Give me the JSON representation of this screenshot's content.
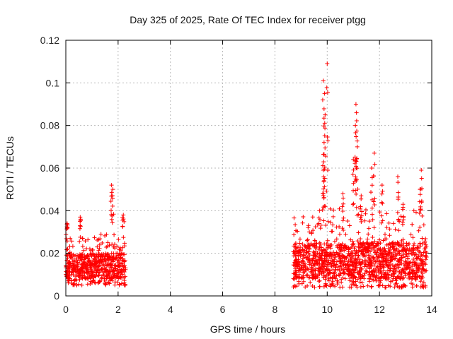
{
  "chart_data": {
    "type": "scatter",
    "title": "Day 325 of 2025, Rate Of TEC Index for receiver ptgg",
    "xlabel": "GPS time / hours",
    "ylabel": "ROTI / TECUs",
    "xlim": [
      0,
      14
    ],
    "ylim": [
      0,
      0.12
    ],
    "x_ticks": [
      0,
      2,
      4,
      6,
      8,
      10,
      12,
      14
    ],
    "x_tick_labels": [
      "0",
      "2",
      "4",
      "6",
      "8",
      "10",
      "12",
      "14"
    ],
    "y_ticks": [
      0,
      0.02,
      0.04,
      0.06,
      0.08,
      0.1,
      0.12
    ],
    "y_tick_labels": [
      "0",
      "0.02",
      "0.04",
      "0.06",
      "0.08",
      "0.1",
      "0.12"
    ],
    "grid": true,
    "marker": "+",
    "color": "#ff0000",
    "segments": [
      {
        "x_start": 0.0,
        "x_end": 2.3,
        "typical_range": [
          0.005,
          0.025
        ],
        "dense_band": [
          0.008,
          0.02
        ]
      },
      {
        "x_start": 8.7,
        "x_end": 13.8,
        "typical_range": [
          0.004,
          0.035
        ],
        "dense_band": [
          0.008,
          0.025
        ]
      }
    ],
    "peaks": [
      {
        "x": 0.05,
        "y": 0.034
      },
      {
        "x": 0.55,
        "y": 0.037
      },
      {
        "x": 1.75,
        "y": 0.052
      },
      {
        "x": 1.8,
        "y": 0.05
      },
      {
        "x": 2.2,
        "y": 0.038
      },
      {
        "x": 9.85,
        "y": 0.101
      },
      {
        "x": 9.9,
        "y": 0.095
      },
      {
        "x": 9.92,
        "y": 0.085
      },
      {
        "x": 9.88,
        "y": 0.072
      },
      {
        "x": 10.0,
        "y": 0.109
      },
      {
        "x": 9.85,
        "y": 0.059
      },
      {
        "x": 11.1,
        "y": 0.09
      },
      {
        "x": 11.12,
        "y": 0.086
      },
      {
        "x": 11.08,
        "y": 0.08
      },
      {
        "x": 11.15,
        "y": 0.07
      },
      {
        "x": 11.0,
        "y": 0.064
      },
      {
        "x": 11.8,
        "y": 0.067
      },
      {
        "x": 11.7,
        "y": 0.06
      },
      {
        "x": 12.1,
        "y": 0.052
      },
      {
        "x": 12.7,
        "y": 0.056
      },
      {
        "x": 13.6,
        "y": 0.059
      },
      {
        "x": 13.55,
        "y": 0.05
      },
      {
        "x": 10.6,
        "y": 0.048
      },
      {
        "x": 11.3,
        "y": 0.047
      },
      {
        "x": 12.9,
        "y": 0.043
      }
    ]
  }
}
